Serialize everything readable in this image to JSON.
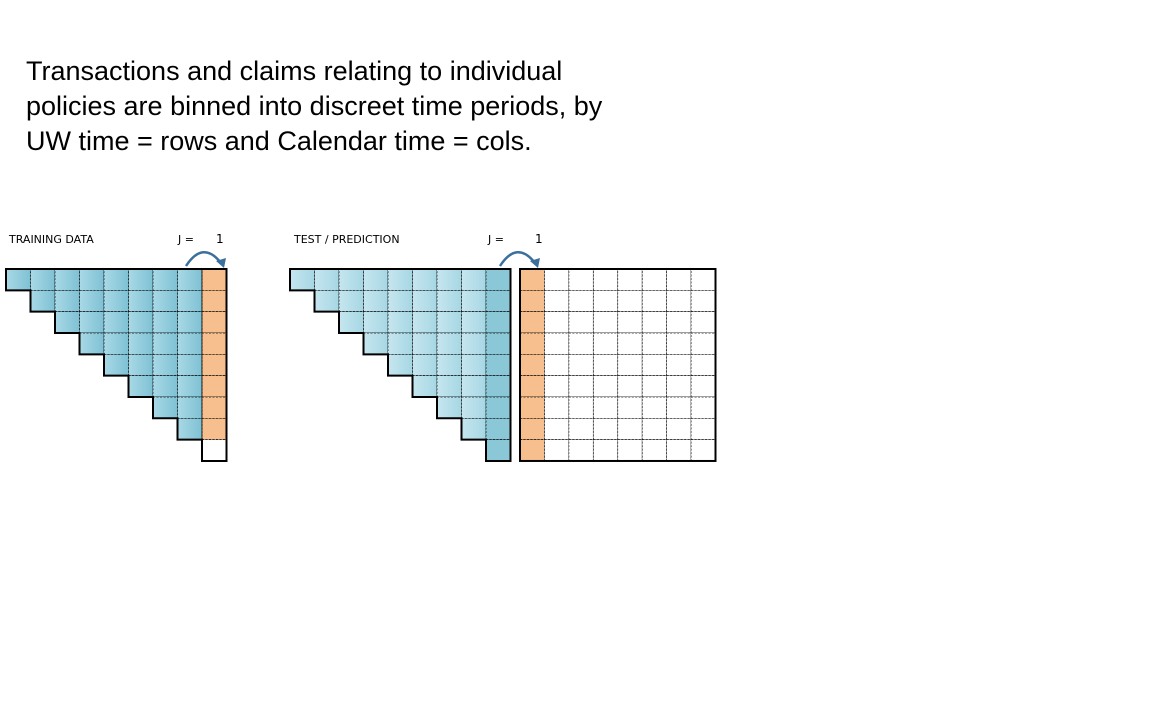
{
  "headline": {
    "line1": "Transactions and claims relating to individual",
    "line2": "policies are binned into discreet time periods, by",
    "line3": "UW time = rows and Calendar time = cols."
  },
  "training": {
    "label": "TRAINING DATA",
    "j_label": "J =",
    "j_value": "1"
  },
  "test": {
    "label": "TEST / PREDICTION",
    "j_label": "J =",
    "j_value": "1"
  },
  "colors": {
    "blue": "#8ac8d8",
    "light_blue": "#b3dde8",
    "orange": "#f8bf8e",
    "arrow": "#3b6f9d",
    "grid_line": "#000000"
  }
}
